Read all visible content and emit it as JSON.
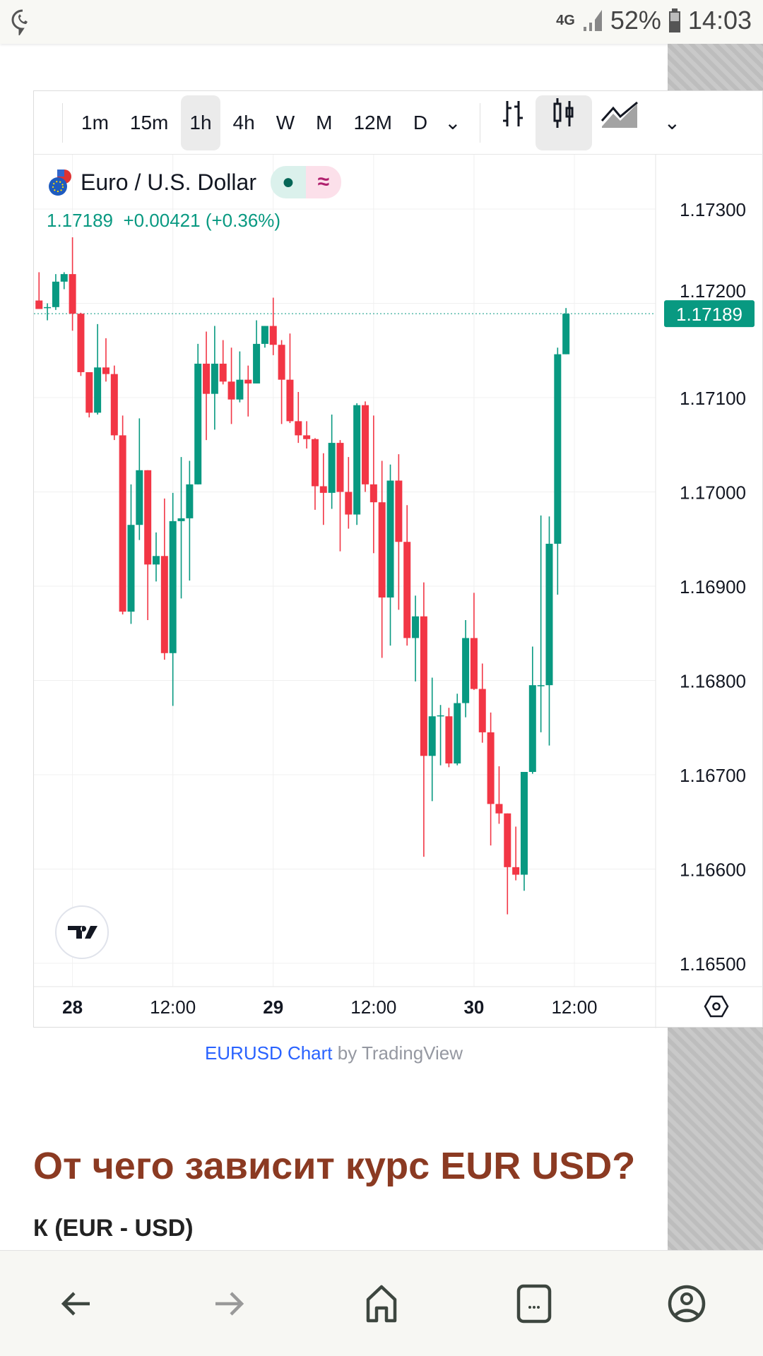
{
  "status": {
    "network": "4G",
    "battery": "52%",
    "time": "14:03"
  },
  "toolbar": {
    "intervals": [
      "1m",
      "15m",
      "1h",
      "4h",
      "W",
      "M",
      "12M",
      "D"
    ],
    "active": "1h"
  },
  "symbol": {
    "name": "Euro / U.S. Dollar",
    "price": "1.17189",
    "change": "+0.00421",
    "change_pct": "(+0.36%)",
    "dot": "●",
    "approx": "≈"
  },
  "colors": {
    "up": "#089981",
    "down": "#f23645",
    "heading": "#8b3a22"
  },
  "caption": {
    "link": "EURUSD Chart",
    "by": " by TradingView"
  },
  "heading": "От чего зависит курс EUR USD?",
  "partial_text": "К                          (EUR - USD)",
  "chart_data": {
    "type": "candlestick",
    "ylim": [
      1.165,
      1.1735
    ],
    "yticks": [
      "1.17300",
      "1.17200",
      "1.17100",
      "1.17000",
      "1.16900",
      "1.16800",
      "1.16700",
      "1.16600",
      "1.16500"
    ],
    "xticks": [
      {
        "label": "28",
        "hour": 0,
        "bold": true
      },
      {
        "label": "12:00",
        "hour": 12
      },
      {
        "label": "29",
        "hour": 24,
        "bold": true
      },
      {
        "label": "12:00",
        "hour": 36
      },
      {
        "label": "30",
        "hour": 48,
        "bold": true
      },
      {
        "label": "12:00",
        "hour": 60
      }
    ],
    "last_price": "1.17189",
    "first_hour": -4,
    "ohlc": [
      [
        1.17203,
        1.17233,
        1.17194,
        1.17194
      ],
      [
        1.17195,
        1.172,
        1.17182,
        1.17196
      ],
      [
        1.17196,
        1.17231,
        1.17193,
        1.17223
      ],
      [
        1.17223,
        1.17233,
        1.17215,
        1.17231
      ],
      [
        1.17231,
        1.1727,
        1.17171,
        1.17189
      ],
      [
        1.17189,
        1.1719,
        1.17123,
        1.17127
      ],
      [
        1.17127,
        1.17127,
        1.17079,
        1.17084
      ],
      [
        1.17084,
        1.17178,
        1.17082,
        1.17132
      ],
      [
        1.17132,
        1.17163,
        1.17117,
        1.17125
      ],
      [
        1.17125,
        1.17134,
        1.17055,
        1.1706
      ],
      [
        1.1706,
        1.17081,
        1.1687,
        1.16873
      ],
      [
        1.16873,
        1.17008,
        1.1686,
        1.16965
      ],
      [
        1.16965,
        1.17078,
        1.16949,
        1.17023
      ],
      [
        1.17023,
        1.17023,
        1.16864,
        1.16923
      ],
      [
        1.16923,
        1.16957,
        1.16905,
        1.16932
      ],
      [
        1.16932,
        1.16993,
        1.16822,
        1.16829
      ],
      [
        1.16829,
        1.16999,
        1.16773,
        1.16969
      ],
      [
        1.16969,
        1.17037,
        1.16887,
        1.16972
      ],
      [
        1.16972,
        1.17033,
        1.16906,
        1.17008
      ],
      [
        1.17008,
        1.17157,
        1.17008,
        1.17136
      ],
      [
        1.17136,
        1.1717,
        1.17055,
        1.17104
      ],
      [
        1.17104,
        1.17176,
        1.17066,
        1.17136
      ],
      [
        1.17136,
        1.17161,
        1.17114,
        1.17117
      ],
      [
        1.17117,
        1.17153,
        1.17072,
        1.17098
      ],
      [
        1.17098,
        1.17149,
        1.17095,
        1.17119
      ],
      [
        1.17119,
        1.17134,
        1.1708,
        1.17115
      ],
      [
        1.17115,
        1.17182,
        1.17115,
        1.17157
      ],
      [
        1.17157,
        1.17176,
        1.17153,
        1.17176
      ],
      [
        1.17176,
        1.17206,
        1.17145,
        1.17156
      ],
      [
        1.17156,
        1.17161,
        1.17072,
        1.17119
      ],
      [
        1.17119,
        1.17168,
        1.17073,
        1.17075
      ],
      [
        1.17075,
        1.17106,
        1.17052,
        1.1706
      ],
      [
        1.1706,
        1.17075,
        1.17046,
        1.17056
      ],
      [
        1.17056,
        1.17057,
        1.16981,
        1.17006
      ],
      [
        1.17006,
        1.17041,
        1.16965,
        1.16999
      ],
      [
        1.16999,
        1.17082,
        1.16982,
        1.17052
      ],
      [
        1.17052,
        1.17055,
        1.16937,
        1.17
      ],
      [
        1.17,
        1.17037,
        1.16961,
        1.16976
      ],
      [
        1.16976,
        1.17094,
        1.16965,
        1.17092
      ],
      [
        1.17092,
        1.17096,
        1.17,
        1.17008
      ],
      [
        1.17008,
        1.17081,
        1.16935,
        1.16989
      ],
      [
        1.16989,
        1.17033,
        1.16824,
        1.16888
      ],
      [
        1.16888,
        1.17029,
        1.16837,
        1.17012
      ],
      [
        1.17012,
        1.1704,
        1.16875,
        1.16947
      ],
      [
        1.16947,
        1.16986,
        1.16837,
        1.16845
      ],
      [
        1.16845,
        1.1689,
        1.16799,
        1.16868
      ],
      [
        1.16868,
        1.16904,
        1.16613,
        1.1672
      ],
      [
        1.1672,
        1.16803,
        1.16672,
        1.16762
      ],
      [
        1.16762,
        1.16774,
        1.1671,
        1.16763
      ],
      [
        1.16762,
        1.16771,
        1.16708,
        1.16712
      ],
      [
        1.16712,
        1.16786,
        1.1671,
        1.16776
      ],
      [
        1.16776,
        1.16864,
        1.16761,
        1.16845
      ],
      [
        1.16845,
        1.16893,
        1.1679,
        1.16791
      ],
      [
        1.16791,
        1.16818,
        1.16734,
        1.16745
      ],
      [
        1.16745,
        1.16766,
        1.16625,
        1.16669
      ],
      [
        1.16669,
        1.16709,
        1.16648,
        1.16659
      ],
      [
        1.16659,
        1.16659,
        1.16552,
        1.16602
      ],
      [
        1.16602,
        1.16645,
        1.16588,
        1.16594
      ],
      [
        1.16594,
        1.16703,
        1.16577,
        1.16703
      ],
      [
        1.16703,
        1.16836,
        1.16701,
        1.16795
      ],
      [
        1.16795,
        1.16975,
        1.16745,
        1.16795
      ],
      [
        1.16795,
        1.16974,
        1.16731,
        1.16945
      ],
      [
        1.16945,
        1.17153,
        1.16891,
        1.17146
      ],
      [
        1.17146,
        1.17195,
        1.17146,
        1.17189
      ]
    ]
  }
}
